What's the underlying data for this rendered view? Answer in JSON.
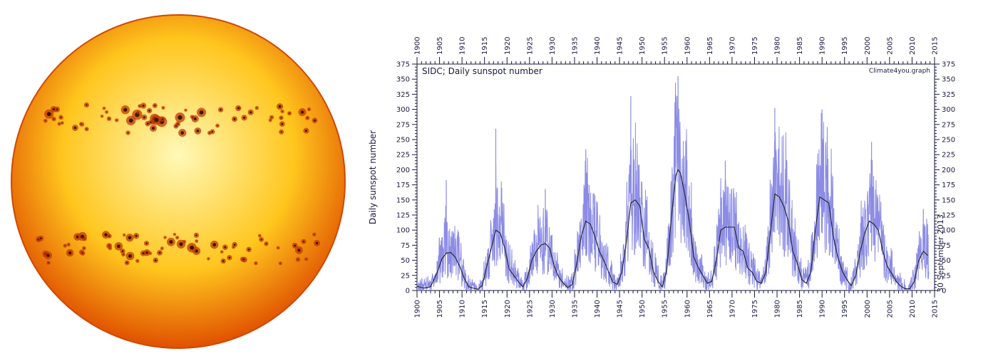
{
  "sun": {
    "color_core": "#fff9b8",
    "color_mid": "#ffc61e",
    "color_edge": "#e05000",
    "spot_color": "#c23a00",
    "spot_core": "#3a1400",
    "sunspot_bands": [
      {
        "name": "northern",
        "latitude_deg": 22
      },
      {
        "name": "southern",
        "latitude_deg": -24
      }
    ]
  },
  "chart_data": {
    "type": "line",
    "title": "SIDC; Daily sunspot number",
    "credit": "Climate4you.graph",
    "annotation": "30 September 2013",
    "ylabel": "Daily sunspot number",
    "xlabel": "",
    "xlim": [
      1900,
      2015
    ],
    "ylim": [
      0,
      375
    ],
    "x_ticks": [
      1900,
      1905,
      1910,
      1915,
      1920,
      1925,
      1930,
      1935,
      1940,
      1945,
      1950,
      1955,
      1960,
      1965,
      1970,
      1975,
      1980,
      1985,
      1990,
      1995,
      2000,
      2005,
      2010,
      2015
    ],
    "y_ticks": [
      0,
      25,
      50,
      75,
      100,
      125,
      150,
      175,
      200,
      225,
      250,
      275,
      300,
      325,
      350,
      375
    ],
    "series": [
      {
        "name": "Daily sunspot number",
        "style": "daily",
        "color": "#8c8ce6",
        "cycle_peaks": [
          {
            "x": 1906.5,
            "y": 183
          },
          {
            "x": 1917.5,
            "y": 268
          },
          {
            "x": 1928.5,
            "y": 168
          },
          {
            "x": 1937.5,
            "y": 234
          },
          {
            "x": 1947.5,
            "y": 322
          },
          {
            "x": 1958.0,
            "y": 355
          },
          {
            "x": 1968.5,
            "y": 215
          },
          {
            "x": 1979.5,
            "y": 302
          },
          {
            "x": 1990.0,
            "y": 300
          },
          {
            "x": 2001.0,
            "y": 246
          },
          {
            "x": 2012.5,
            "y": 135
          }
        ]
      },
      {
        "name": "Smoothed sunspot number",
        "style": "smoothed",
        "color": "#222222",
        "x": [
          1900.0,
          1901.5,
          1903.0,
          1904.5,
          1905.5,
          1906.5,
          1907.5,
          1908.5,
          1909.5,
          1910.5,
          1911.5,
          1912.5,
          1913.5,
          1914.5,
          1915.5,
          1916.5,
          1917.5,
          1918.5,
          1919.5,
          1920.5,
          1921.5,
          1922.5,
          1923.5,
          1924.5,
          1925.5,
          1926.5,
          1927.5,
          1928.5,
          1929.5,
          1930.5,
          1931.5,
          1932.5,
          1933.5,
          1934.5,
          1935.5,
          1936.5,
          1937.5,
          1938.5,
          1939.5,
          1940.5,
          1941.5,
          1942.5,
          1943.5,
          1944.5,
          1945.5,
          1946.5,
          1947.5,
          1948.5,
          1949.5,
          1950.5,
          1951.5,
          1952.5,
          1953.5,
          1954.5,
          1955.5,
          1956.5,
          1957.5,
          1958.0,
          1958.5,
          1959.5,
          1960.5,
          1961.5,
          1962.5,
          1963.5,
          1964.5,
          1965.5,
          1966.5,
          1967.5,
          1968.5,
          1969.5,
          1970.5,
          1971.5,
          1972.5,
          1973.5,
          1974.5,
          1975.5,
          1976.5,
          1977.5,
          1978.5,
          1979.5,
          1980.5,
          1981.5,
          1982.5,
          1983.5,
          1984.5,
          1985.5,
          1986.5,
          1987.5,
          1988.5,
          1989.5,
          1990.5,
          1991.5,
          1992.5,
          1993.5,
          1994.5,
          1995.5,
          1996.5,
          1997.5,
          1998.5,
          1999.5,
          2000.5,
          2001.5,
          2002.5,
          2003.5,
          2004.5,
          2005.5,
          2006.5,
          2007.5,
          2008.5,
          2009.5,
          2010.5,
          2011.5,
          2012.5,
          2013.5
        ],
        "y": [
          7,
          4,
          6,
          30,
          52,
          62,
          63,
          55,
          40,
          20,
          6,
          4,
          2,
          8,
          40,
          70,
          100,
          95,
          70,
          35,
          25,
          15,
          6,
          20,
          50,
          65,
          75,
          78,
          70,
          40,
          22,
          12,
          5,
          10,
          45,
          90,
          115,
          110,
          90,
          65,
          50,
          32,
          14,
          10,
          30,
          80,
          145,
          150,
          140,
          85,
          70,
          32,
          16,
          6,
          35,
          120,
          190,
          200,
          195,
          160,
          115,
          55,
          38,
          25,
          12,
          15,
          50,
          100,
          105,
          105,
          105,
          70,
          65,
          37,
          30,
          15,
          12,
          30,
          95,
          160,
          155,
          140,
          115,
          65,
          45,
          18,
          12,
          30,
          100,
          155,
          150,
          145,
          90,
          55,
          32,
          18,
          8,
          25,
          65,
          95,
          115,
          110,
          100,
          65,
          40,
          28,
          15,
          7,
          3,
          3,
          15,
          50,
          65,
          58
        ]
      }
    ]
  }
}
